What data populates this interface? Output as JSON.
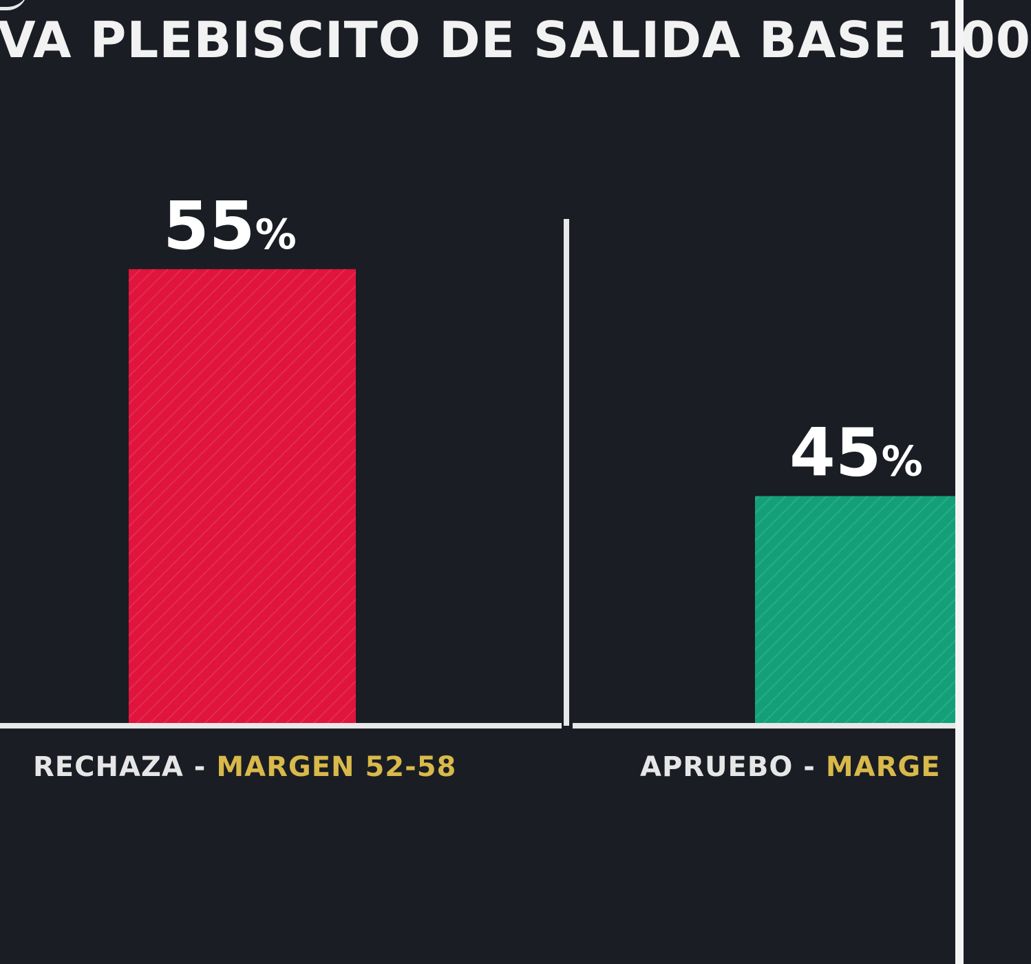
{
  "title": "VA PLEBISCITO DE SALIDA BASE 100",
  "colors": {
    "background": "#1a1d24",
    "rechaza": "#e0143c",
    "apruebo": "#13a079",
    "axis": "#e8e8e8",
    "margin_text": "#d8b94a"
  },
  "chart_data": {
    "type": "bar",
    "title": "VA PLEBISCITO DE SALIDA BASE 100",
    "categories": [
      "RECHAZA",
      "APRUEBO"
    ],
    "values": [
      55,
      45
    ],
    "value_labels": [
      "55",
      "45"
    ],
    "unit": "%",
    "category_margins": [
      "MARGEN 52-58",
      "MARGE"
    ],
    "separator": " - ",
    "colors": [
      "#e0143c",
      "#13a079"
    ],
    "xlabel": "",
    "ylabel": "",
    "ylim": [
      35,
      58
    ],
    "grid": false,
    "legend": "none"
  }
}
